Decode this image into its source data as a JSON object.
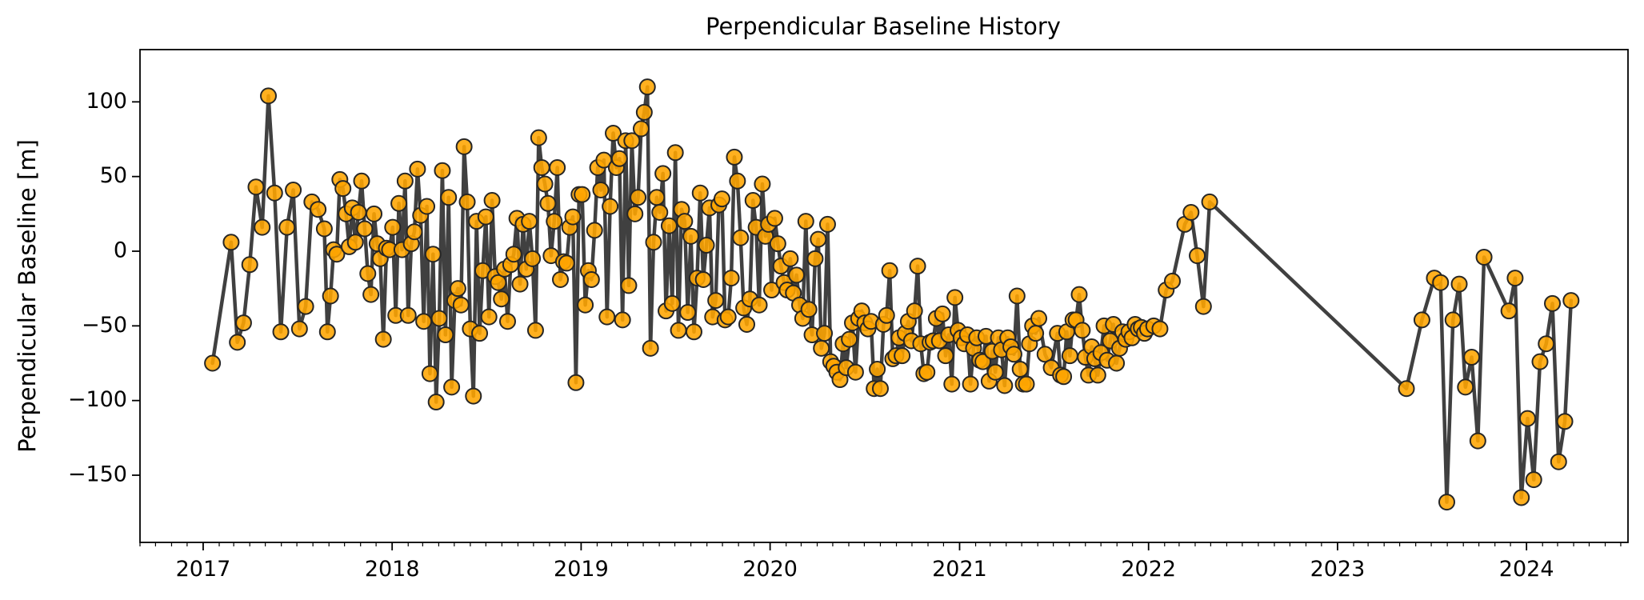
{
  "chart_data": {
    "type": "line",
    "title": "Perpendicular Baseline History",
    "xlabel": "",
    "ylabel": "Perpendicular Baseline [m]",
    "xlim": [
      "2016-09-01",
      "2024-07-15"
    ],
    "ylim": [
      -195,
      135
    ],
    "x_ticks": [
      "2017-01-01",
      "2018-01-01",
      "2019-01-01",
      "2020-01-01",
      "2021-01-01",
      "2022-01-01",
      "2023-01-01",
      "2024-01-01"
    ],
    "x_tick_labels": [
      "2017",
      "2018",
      "2019",
      "2020",
      "2021",
      "2022",
      "2023",
      "2024"
    ],
    "y_ticks": [
      -150,
      -100,
      -50,
      0,
      50,
      100
    ],
    "y_tick_labels": [
      "−150",
      "−100",
      "−50",
      "0",
      "50",
      "100"
    ],
    "x_minor_ticks": "monthly",
    "grid": false,
    "legend": "none",
    "colors": {
      "line": "#404040",
      "marker_fill": "#FFA500",
      "marker_edge": "#262626"
    },
    "series": [
      {
        "x": [
          "2017-01-19",
          "2017-02-24",
          "2017-03-08",
          "2017-03-20",
          "2017-04-01",
          "2017-04-13",
          "2017-04-25",
          "2017-05-07",
          "2017-05-19",
          "2017-05-31",
          "2017-06-12",
          "2017-06-24",
          "2017-07-06",
          "2017-07-18",
          "2017-07-30",
          "2017-08-11",
          "2017-08-23",
          "2017-08-29",
          "2017-09-04",
          "2017-09-10",
          "2017-09-16",
          "2017-09-22",
          "2017-09-28",
          "2017-10-04",
          "2017-10-10",
          "2017-10-16",
          "2017-10-22",
          "2017-10-28",
          "2017-11-03",
          "2017-11-09",
          "2017-11-15",
          "2017-11-21",
          "2017-11-27",
          "2017-12-03",
          "2017-12-09",
          "2017-12-15",
          "2017-12-21",
          "2017-12-27",
          "2018-01-02",
          "2018-01-08",
          "2018-01-14",
          "2018-01-20",
          "2018-01-26",
          "2018-02-01",
          "2018-02-07",
          "2018-02-13",
          "2018-02-19",
          "2018-02-25",
          "2018-03-03",
          "2018-03-09",
          "2018-03-15",
          "2018-03-21",
          "2018-03-27",
          "2018-04-02",
          "2018-04-08",
          "2018-04-14",
          "2018-04-20",
          "2018-04-26",
          "2018-05-02",
          "2018-05-08",
          "2018-05-14",
          "2018-05-20",
          "2018-05-26",
          "2018-06-01",
          "2018-06-07",
          "2018-06-13",
          "2018-06-19",
          "2018-06-25",
          "2018-07-01",
          "2018-07-07",
          "2018-07-13",
          "2018-07-19",
          "2018-07-25",
          "2018-07-31",
          "2018-08-06",
          "2018-08-12",
          "2018-08-18",
          "2018-08-24",
          "2018-08-30",
          "2018-09-05",
          "2018-09-11",
          "2018-09-17",
          "2018-09-23",
          "2018-09-29",
          "2018-10-05",
          "2018-10-11",
          "2018-10-17",
          "2018-10-23",
          "2018-10-29",
          "2018-11-04",
          "2018-11-10",
          "2018-11-16",
          "2018-11-22",
          "2018-11-28",
          "2018-12-04",
          "2018-12-10",
          "2018-12-16",
          "2018-12-22",
          "2018-12-28",
          "2019-01-03",
          "2019-01-09",
          "2019-01-15",
          "2019-01-21",
          "2019-01-27",
          "2019-02-02",
          "2019-02-08",
          "2019-02-14",
          "2019-02-20",
          "2019-02-26",
          "2019-03-04",
          "2019-03-10",
          "2019-03-16",
          "2019-03-22",
          "2019-03-28",
          "2019-04-03",
          "2019-04-09",
          "2019-04-15",
          "2019-04-21",
          "2019-04-27",
          "2019-05-03",
          "2019-05-09",
          "2019-05-15",
          "2019-05-21",
          "2019-05-27",
          "2019-06-02",
          "2019-06-08",
          "2019-06-14",
          "2019-06-20",
          "2019-06-26",
          "2019-07-02",
          "2019-07-08",
          "2019-07-14",
          "2019-07-20",
          "2019-07-26",
          "2019-08-01",
          "2019-08-07",
          "2019-08-13",
          "2019-08-19",
          "2019-08-25",
          "2019-08-31",
          "2019-09-06",
          "2019-09-12",
          "2019-09-18",
          "2019-09-24",
          "2019-09-30",
          "2019-10-06",
          "2019-10-12",
          "2019-10-18",
          "2019-10-24",
          "2019-10-30",
          "2019-11-05",
          "2019-11-11",
          "2019-11-17",
          "2019-11-23",
          "2019-11-29",
          "2019-12-05",
          "2019-12-11",
          "2019-12-17",
          "2019-12-23",
          "2019-12-29",
          "2020-01-04",
          "2020-01-10",
          "2020-01-16",
          "2020-01-22",
          "2020-01-28",
          "2020-02-03",
          "2020-02-09",
          "2020-02-15",
          "2020-02-21",
          "2020-02-27",
          "2020-03-04",
          "2020-03-10",
          "2020-03-16",
          "2020-03-22",
          "2020-03-28",
          "2020-04-03",
          "2020-04-09",
          "2020-04-15",
          "2020-04-21",
          "2020-04-27",
          "2020-05-03",
          "2020-05-09",
          "2020-05-15",
          "2020-05-21",
          "2020-05-27",
          "2020-06-02",
          "2020-06-08",
          "2020-06-14",
          "2020-06-20",
          "2020-06-26",
          "2020-07-02",
          "2020-07-08",
          "2020-07-14",
          "2020-07-20",
          "2020-07-26",
          "2020-08-01",
          "2020-08-07",
          "2020-08-13",
          "2020-08-19",
          "2020-08-25",
          "2020-08-31",
          "2020-09-06",
          "2020-09-12",
          "2020-09-18",
          "2020-09-24",
          "2020-09-30",
          "2020-10-06",
          "2020-10-12",
          "2020-10-18",
          "2020-10-24",
          "2020-10-30",
          "2020-11-05",
          "2020-11-11",
          "2020-11-17",
          "2020-11-23",
          "2020-11-29",
          "2020-12-05",
          "2020-12-11",
          "2020-12-17",
          "2020-12-23",
          "2020-12-29",
          "2021-01-04",
          "2021-01-10",
          "2021-01-16",
          "2021-01-22",
          "2021-01-28",
          "2021-02-03",
          "2021-02-09",
          "2021-02-15",
          "2021-02-21",
          "2021-02-27",
          "2021-03-05",
          "2021-03-11",
          "2021-03-17",
          "2021-03-23",
          "2021-03-29",
          "2021-04-04",
          "2021-04-10",
          "2021-04-16",
          "2021-04-22",
          "2021-04-28",
          "2021-05-04",
          "2021-05-10",
          "2021-05-16",
          "2021-05-22",
          "2021-05-28",
          "2021-06-03",
          "2021-06-15",
          "2021-06-27",
          "2021-07-09",
          "2021-07-15",
          "2021-07-21",
          "2021-07-27",
          "2021-08-02",
          "2021-08-08",
          "2021-08-14",
          "2021-08-20",
          "2021-08-26",
          "2021-09-01",
          "2021-09-07",
          "2021-09-13",
          "2021-09-19",
          "2021-09-25",
          "2021-10-01",
          "2021-10-07",
          "2021-10-13",
          "2021-10-19",
          "2021-10-25",
          "2021-10-31",
          "2021-11-06",
          "2021-11-12",
          "2021-11-18",
          "2021-11-24",
          "2021-11-30",
          "2021-12-06",
          "2021-12-12",
          "2021-12-18",
          "2021-12-24",
          "2021-12-30",
          "2022-01-11",
          "2022-01-23",
          "2022-02-04",
          "2022-02-16",
          "2022-03-12",
          "2022-03-24",
          "2022-04-05",
          "2022-04-17",
          "2022-04-29",
          "2023-05-14",
          "2023-06-13",
          "2023-07-07",
          "2023-07-19",
          "2023-07-31",
          "2023-08-12",
          "2023-08-24",
          "2023-09-05",
          "2023-09-17",
          "2023-09-29",
          "2023-10-11",
          "2023-11-28",
          "2023-12-10",
          "2023-12-22",
          "2024-01-03",
          "2024-01-15",
          "2024-01-27",
          "2024-02-08",
          "2024-02-20",
          "2024-03-03",
          "2024-03-15",
          "2024-03-27"
        ],
        "y": [
          -75,
          6,
          -61,
          -48,
          -9,
          43,
          16,
          104,
          39,
          -54,
          16,
          41,
          -52,
          -37,
          33,
          28,
          15,
          -54,
          -30,
          1,
          -2,
          48,
          42,
          25,
          3,
          29,
          6,
          26,
          47,
          15,
          -15,
          -29,
          25,
          5,
          -5,
          -59,
          2,
          1,
          16,
          -43,
          32,
          1,
          47,
          -43,
          5,
          13,
          55,
          24,
          -47,
          30,
          -82,
          -2,
          -101,
          -45,
          54,
          -56,
          36,
          -91,
          -33,
          -25,
          -36,
          70,
          33,
          -52,
          -97,
          20,
          -55,
          -13,
          23,
          -44,
          34,
          -17,
          -21,
          -32,
          -12,
          -47,
          -9,
          -2,
          22,
          -22,
          18,
          -12,
          20,
          -5,
          -53,
          76,
          56,
          45,
          32,
          -3,
          20,
          56,
          -19,
          -7,
          -8,
          16,
          23,
          -88,
          38,
          38,
          -36,
          -13,
          -19,
          14,
          56,
          41,
          61,
          -44,
          30,
          79,
          56,
          62,
          -46,
          74,
          -23,
          74,
          25,
          36,
          82,
          93,
          110,
          -65,
          6,
          36,
          26,
          52,
          -40,
          17,
          -35,
          66,
          -53,
          28,
          20,
          -41,
          10,
          -54,
          -18,
          39,
          -19,
          4,
          29,
          -44,
          -33,
          31,
          35,
          -46,
          -44,
          -18,
          63,
          47,
          9,
          -38,
          -49,
          -32,
          34,
          16,
          -36,
          45,
          10,
          18,
          -26,
          22,
          5,
          -10,
          -21,
          -26,
          -5,
          -28,
          -16,
          -36,
          -45,
          20,
          -39,
          -56,
          -5,
          8,
          -65,
          -55,
          18,
          -74,
          -77,
          -81,
          -86,
          -62,
          -78,
          -59,
          -48,
          -81,
          -45,
          -40,
          -48,
          -52,
          -47,
          -92,
          -79,
          -92,
          -49,
          -43,
          -13,
          -72,
          -70,
          -58,
          -70,
          -55,
          -47,
          -60,
          -40,
          -10,
          -62,
          -82,
          -81,
          -61,
          -60,
          -45,
          -60,
          -42,
          -70,
          -56,
          -89,
          -31,
          -53,
          -58,
          -62,
          -56,
          -89,
          -65,
          -58,
          -73,
          -74,
          -57,
          -87,
          -67,
          -81,
          -58,
          -66,
          -90,
          -58,
          -64,
          -69,
          -30,
          -79,
          -89,
          -89,
          -62,
          -50,
          -55,
          -45,
          -69,
          -78,
          -55,
          -83,
          -84,
          -54,
          -70,
          -46,
          -46,
          -29,
          -53,
          -71,
          -83,
          -64,
          -72,
          -83,
          -68,
          -50,
          -73,
          -60,
          -49,
          -75,
          -65,
          -54,
          -59,
          -54,
          -58,
          -49,
          -52,
          -51,
          -55,
          -52,
          -50,
          -52,
          -26,
          -20,
          18,
          26,
          -3,
          -37,
          33,
          -92,
          -46,
          -18,
          -21,
          -168,
          -46,
          -22,
          -91,
          -71,
          -127,
          -4,
          -40,
          -18,
          -165,
          -112,
          -153,
          -74,
          -62,
          -35,
          -141,
          -114,
          -33
        ]
      }
    ]
  }
}
